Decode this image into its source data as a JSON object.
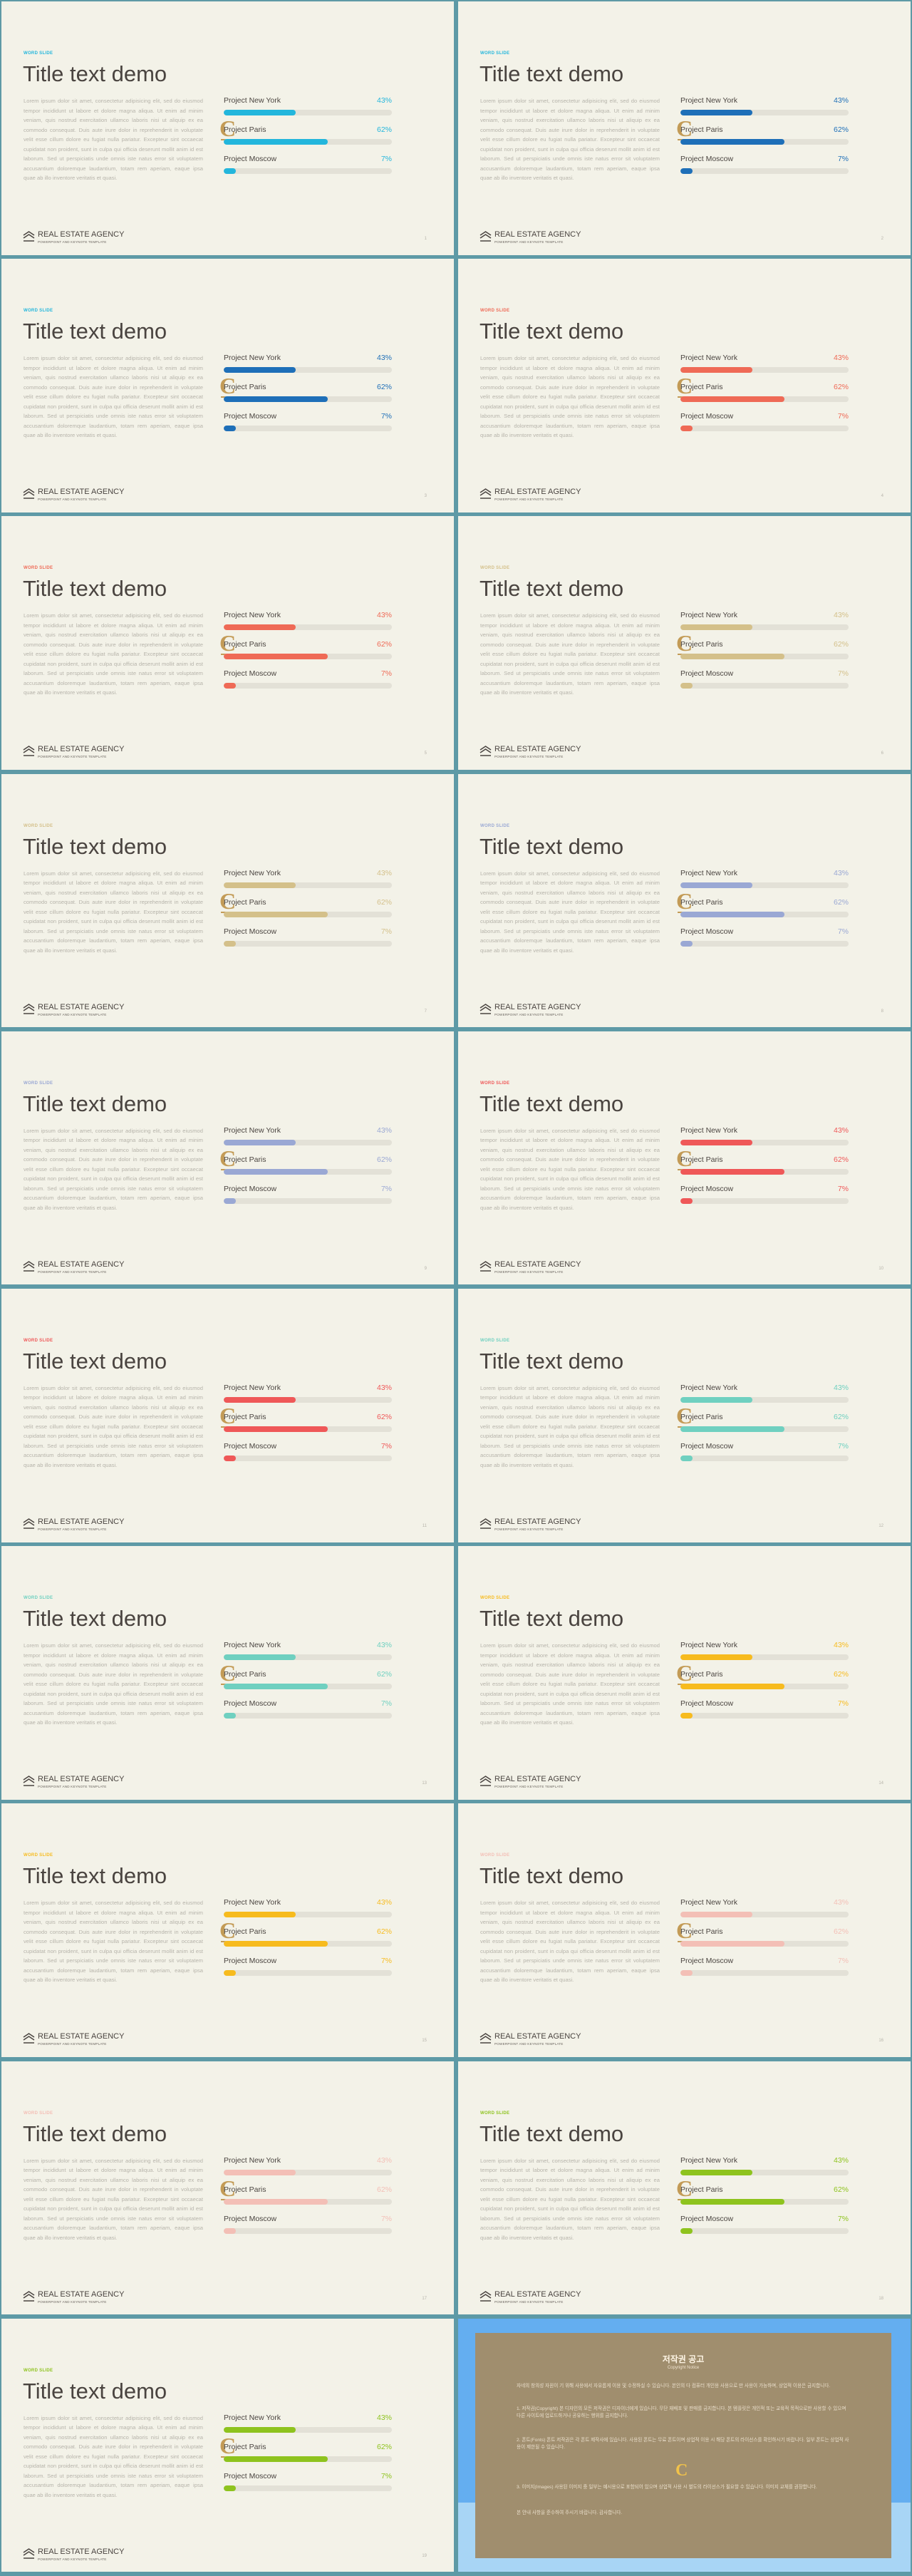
{
  "deck": {
    "brand": "REAL ESTATE AGENCY",
    "sub": "POWERPOINT AND KEYNOTE TEMPLATE",
    "title": "Title text demo",
    "tag": "WORD SLIDE",
    "body": "Lorem ipsum dolor sit amet, consectetur adipisicing elit, sed do eiusmod tempor incididunt ut labore et dolore magna aliqua. Ut enim ad minim veniam, quis nostrud exercitation ullamco laboris nisi ut aliquip ex ea commodo consequat. Duis aute irure dolor in reprehenderit in voluptate velit esse cillum dolore eu fugiat nulla pariatur. Excepteur sint occaecat cupidatat non proident, sunt in culpa qui officia deserunt mollit anim id est laborum. Sed ut perspiciatis unde omnis iste natus error sit voluptatem accusantium doloremque laudantium, totam rem aperiam, eaque ipsa quae ab illo inventore veritatis et quasi.",
    "deco_letter": "C",
    "projects": [
      {
        "label": "Project New York",
        "value": 43
      },
      {
        "label": "Project Paris",
        "value": 62
      },
      {
        "label": "Project Moscow",
        "value": 7
      }
    ]
  },
  "slides": [
    {
      "page": "1",
      "accent": "#23b6dc",
      "fill": "#23b6dc",
      "pct_color": "#23b6dc"
    },
    {
      "page": "2",
      "accent": "#23b6dc",
      "fill": "#1e6fb8",
      "pct_color": "#1e6fb8"
    },
    {
      "page": "3",
      "accent": "#23b6dc",
      "fill": "#1e6fb8",
      "pct_color": "#1e6fb8"
    },
    {
      "page": "4",
      "accent": "#ef6a56",
      "fill": "#ef6a56",
      "pct_color": "#ef6a56"
    },
    {
      "page": "5",
      "accent": "#ef6a56",
      "fill": "#ef6a56",
      "pct_color": "#ef6a56"
    },
    {
      "page": "6",
      "accent": "#d4c08a",
      "fill": "#d4c08a",
      "pct_color": "#d4c08a"
    },
    {
      "page": "7",
      "accent": "#d4c08a",
      "fill": "#d4c08a",
      "pct_color": "#d4c08a"
    },
    {
      "page": "8",
      "accent": "#9aa8d4",
      "fill": "#9aa8d4",
      "pct_color": "#9aa8d4"
    },
    {
      "page": "9",
      "accent": "#9aa8d4",
      "fill": "#9aa8d4",
      "pct_color": "#9aa8d4"
    },
    {
      "page": "10",
      "accent": "#ef5858",
      "fill": "#ef5858",
      "pct_color": "#ef5858"
    },
    {
      "page": "11",
      "accent": "#ef5858",
      "fill": "#ef5858",
      "pct_color": "#ef5858"
    },
    {
      "page": "12",
      "accent": "#6fd0c0",
      "fill": "#6fd0c0",
      "pct_color": "#6fd0c0"
    },
    {
      "page": "13",
      "accent": "#6fd0c0",
      "fill": "#6fd0c0",
      "pct_color": "#6fd0c0"
    },
    {
      "page": "14",
      "accent": "#f7bb1e",
      "fill": "#f7bb1e",
      "pct_color": "#f7bb1e"
    },
    {
      "page": "15",
      "accent": "#f7bb1e",
      "fill": "#f7bb1e",
      "pct_color": "#f7bb1e"
    },
    {
      "page": "16",
      "accent": "#f3bfb6",
      "fill": "#f3bfb6",
      "pct_color": "#f3bfb6"
    },
    {
      "page": "17",
      "accent": "#f3bfb6",
      "fill": "#f3bfb6",
      "pct_color": "#f3bfb6"
    },
    {
      "page": "18",
      "accent": "#8ec31e",
      "fill": "#8ec31e",
      "pct_color": "#8ec31e"
    },
    {
      "page": "19",
      "accent": "#8ec31e",
      "fill": "#8ec31e",
      "pct_color": "#8ec31e"
    }
  ],
  "copyright": {
    "title": "저작권 공고",
    "subtitle": "Copyright Notice",
    "bg_color": "#64aef0",
    "card_color": "#a08e6e",
    "paragraphs": [
      "자네의 창의성 자원이 기 위해 사용에서 자유롭게 이용 및 수정하실 수 있습니다. 본인의 다 컴퓨터 개인용 사용으로 만 사용이 가능하며, 상업적 이용은 금지합니다.",
      "1. 저작권(Copyright) 본 디자인의 모든 저작권은 디자이너에게 있습니다. 무단 재배포 및 판매를 금지합니다. 본 템플릿은 개인적 또는 교육적 목적으로만 사용할 수 있으며 다른 사이트에 업로드하거나 공유하는 행위를 금지합니다.",
      "2. 폰트(Fonts) 폰트 저작권은 각 폰트 제작사에 있습니다. 사용된 폰트는 무료 폰트이며 상업적 이용 시 해당 폰트의 라이선스를 확인하시기 바랍니다. 일부 폰트는 상업적 사용이 제한될 수 있습니다.",
      "3. 이미지(Images) 사용된 이미지 중 일부는 예시용으로 포함되어 있으며 상업적 사용 시 별도의 라이선스가 필요할 수 있습니다. 이미지 교체를 권장합니다.",
      "본 안내 사항을 준수하여 주시기 바랍니다. 감사합니다."
    ]
  }
}
